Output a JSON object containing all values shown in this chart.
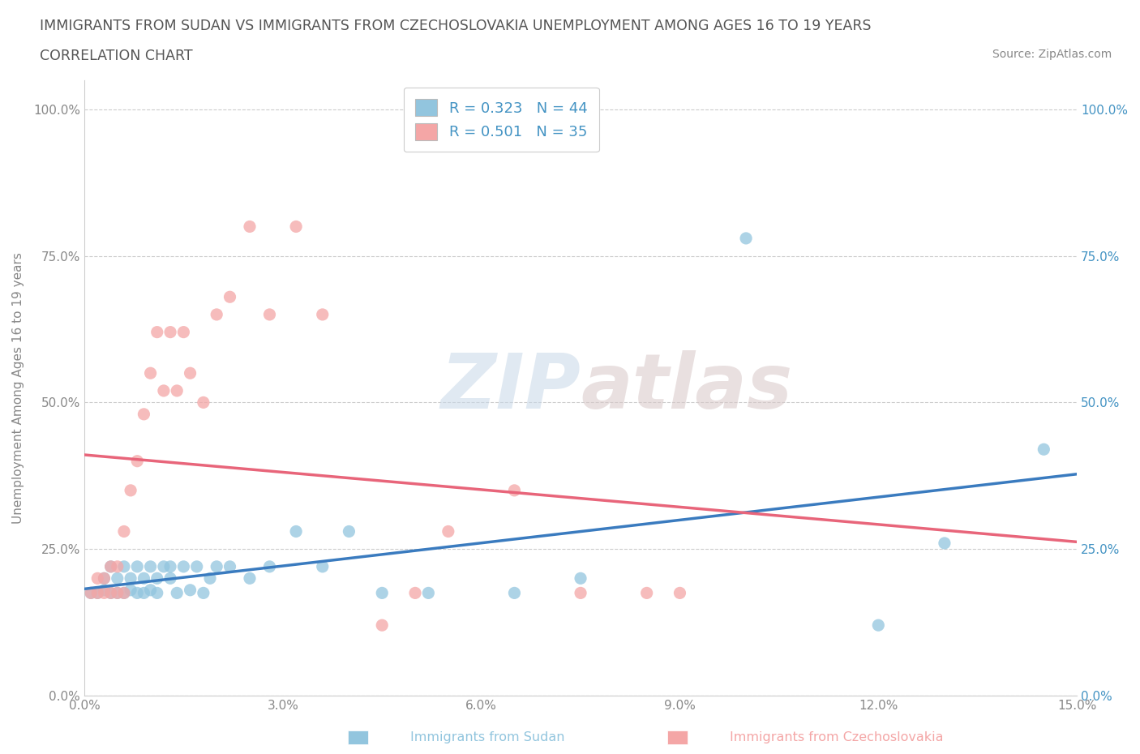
{
  "title_line1": "IMMIGRANTS FROM SUDAN VS IMMIGRANTS FROM CZECHOSLOVAKIA UNEMPLOYMENT AMONG AGES 16 TO 19 YEARS",
  "title_line2": "CORRELATION CHART",
  "source_text": "Source: ZipAtlas.com",
  "ylabel": "Unemployment Among Ages 16 to 19 years",
  "xmin": 0.0,
  "xmax": 0.15,
  "ymin": 0.0,
  "ymax": 1.05,
  "ytick_vals": [
    0.0,
    0.25,
    0.5,
    0.75,
    1.0
  ],
  "ytick_labels_left": [
    "0.0%",
    "25.0%",
    "50.0%",
    "75.0%",
    "100.0%"
  ],
  "ytick_labels_right": [
    "0.0%",
    "25.0%",
    "50.0%",
    "75.0%",
    "100.0%"
  ],
  "xtick_vals": [
    0.0,
    0.03,
    0.06,
    0.09,
    0.12,
    0.15
  ],
  "xtick_labels": [
    "0.0%",
    "3.0%",
    "6.0%",
    "9.0%",
    "12.0%",
    "15.0%"
  ],
  "watermark_zip": "ZIP",
  "watermark_atlas": "atlas",
  "legend_r1": "R = 0.323",
  "legend_n1": "N = 44",
  "legend_r2": "R = 0.501",
  "legend_n2": "N = 35",
  "color_sudan": "#92c5de",
  "color_czech": "#f4a6a6",
  "color_line_sudan": "#3a7bbf",
  "color_line_czech": "#e8657a",
  "background_color": "#ffffff",
  "grid_color": "#cccccc",
  "title_color": "#555555",
  "label_color_left": "#888888",
  "label_color_right": "#4393c3",
  "sudan_x": [
    0.001,
    0.002,
    0.003,
    0.003,
    0.004,
    0.004,
    0.005,
    0.005,
    0.006,
    0.006,
    0.007,
    0.007,
    0.008,
    0.008,
    0.009,
    0.009,
    0.01,
    0.01,
    0.011,
    0.011,
    0.012,
    0.013,
    0.013,
    0.014,
    0.015,
    0.016,
    0.017,
    0.018,
    0.019,
    0.02,
    0.022,
    0.025,
    0.028,
    0.032,
    0.036,
    0.04,
    0.045,
    0.052,
    0.065,
    0.075,
    0.1,
    0.12,
    0.13,
    0.145
  ],
  "sudan_y": [
    0.175,
    0.175,
    0.18,
    0.2,
    0.175,
    0.22,
    0.175,
    0.2,
    0.175,
    0.22,
    0.18,
    0.2,
    0.175,
    0.22,
    0.175,
    0.2,
    0.18,
    0.22,
    0.175,
    0.2,
    0.22,
    0.2,
    0.22,
    0.175,
    0.22,
    0.18,
    0.22,
    0.175,
    0.2,
    0.22,
    0.22,
    0.2,
    0.22,
    0.28,
    0.22,
    0.28,
    0.175,
    0.175,
    0.175,
    0.2,
    0.78,
    0.12,
    0.26,
    0.42
  ],
  "czech_x": [
    0.001,
    0.002,
    0.002,
    0.003,
    0.003,
    0.004,
    0.004,
    0.005,
    0.005,
    0.006,
    0.006,
    0.007,
    0.008,
    0.009,
    0.01,
    0.011,
    0.012,
    0.013,
    0.014,
    0.015,
    0.016,
    0.018,
    0.02,
    0.022,
    0.025,
    0.028,
    0.032,
    0.036,
    0.045,
    0.05,
    0.055,
    0.065,
    0.075,
    0.085,
    0.09
  ],
  "czech_y": [
    0.175,
    0.175,
    0.2,
    0.175,
    0.2,
    0.175,
    0.22,
    0.175,
    0.22,
    0.175,
    0.28,
    0.35,
    0.4,
    0.48,
    0.55,
    0.62,
    0.52,
    0.62,
    0.52,
    0.62,
    0.55,
    0.5,
    0.65,
    0.68,
    0.8,
    0.65,
    0.8,
    0.65,
    0.12,
    0.175,
    0.28,
    0.35,
    0.175,
    0.175,
    0.175
  ]
}
